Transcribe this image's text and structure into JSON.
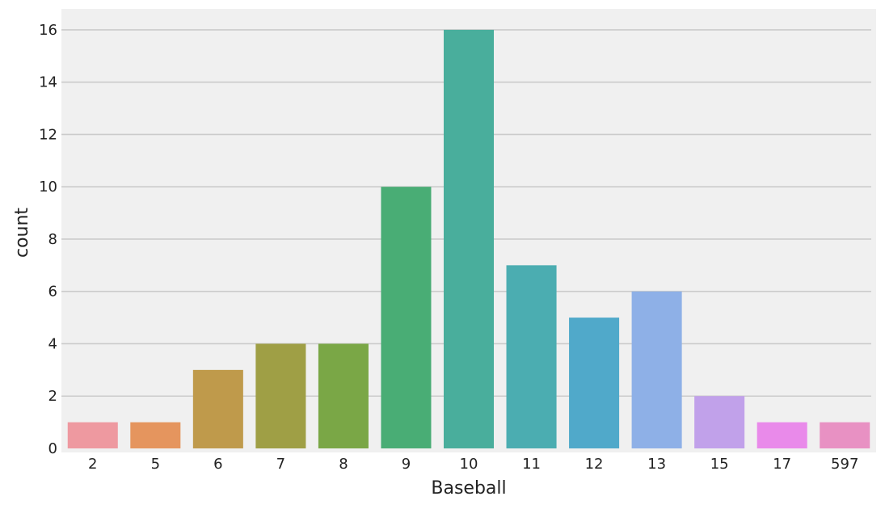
{
  "chart_data": {
    "type": "bar",
    "xlabel": "Baseball",
    "ylabel": "count",
    "categories": [
      "2",
      "5",
      "6",
      "7",
      "8",
      "9",
      "10",
      "11",
      "12",
      "13",
      "15",
      "17",
      "597"
    ],
    "values": [
      1,
      1,
      3,
      4,
      4,
      10,
      16,
      7,
      5,
      6,
      2,
      1,
      1
    ],
    "colors": [
      "#ee99a0",
      "#e5955e",
      "#bf9a4b",
      "#9f9f45",
      "#7aa746",
      "#49ad75",
      "#49ae9c",
      "#4badb1",
      "#50a9ca",
      "#8eb0e7",
      "#c1a1ea",
      "#e98aea",
      "#e891c3"
    ],
    "ylim": [
      0,
      16.8
    ],
    "yticks": [
      0,
      2,
      4,
      6,
      8,
      10,
      12,
      14,
      16
    ],
    "grid": "horizontal",
    "background": "#f0f0f0",
    "gridColor": "#cbcbcb"
  }
}
